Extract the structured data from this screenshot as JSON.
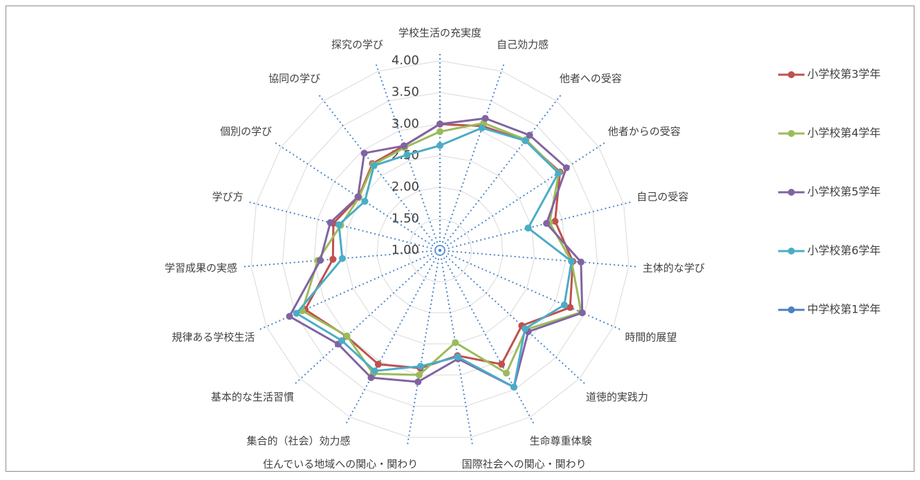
{
  "chart_data": {
    "type": "radar",
    "categories": [
      "学校生活の充実度",
      "自己効力感",
      "他者への受容",
      "他者からの受容",
      "自己の受容",
      "主体的な学び",
      "時間的展望",
      "道徳的実践力",
      "生命尊重体験",
      "国際社会への関心・関わり",
      "住んでいる地域への関心・関わり",
      "集合的（社会）効力感",
      "基本的な生活習慣",
      "規律ある学校生活",
      "学習成果の実感",
      "学び方",
      "個別の学び",
      "協同の学び",
      "探究の学び"
    ],
    "series": [
      {
        "name": "小学校第3学年",
        "color": "#c0504d",
        "values": [
          3.0,
          3.08,
          3.2,
          3.27,
          2.88,
          3.11,
          3.25,
          2.76,
          3.05,
          2.69,
          2.89,
          3.05,
          3.01,
          3.33,
          2.7,
          2.74,
          2.54,
          2.74,
          2.75
        ]
      },
      {
        "name": "小学校第4学年",
        "color": "#9bbb59",
        "values": [
          2.88,
          3.13,
          3.22,
          3.25,
          2.79,
          3.09,
          3.44,
          2.85,
          3.21,
          2.48,
          3.0,
          3.22,
          3.0,
          3.38,
          2.94,
          2.62,
          2.53,
          2.72,
          2.72
        ]
      },
      {
        "name": "小学校第5学年",
        "color": "#8064a2",
        "values": [
          3.0,
          3.21,
          3.31,
          3.39,
          2.74,
          3.24,
          3.46,
          2.9,
          3.46,
          2.74,
          3.11,
          3.29,
          3.19,
          3.6,
          2.9,
          2.79,
          2.55,
          2.95,
          2.75
        ]
      },
      {
        "name": "小学校第6学年",
        "color": "#4bacc6",
        "values": [
          2.66,
          3.05,
          3.2,
          3.24,
          2.44,
          3.09,
          3.15,
          2.83,
          3.46,
          2.71,
          2.86,
          3.17,
          3.11,
          3.48,
          2.55,
          2.65,
          2.42,
          2.7,
          2.6
        ]
      },
      {
        "name": "中学校第1学年",
        "color": "#4f81bd",
        "values": [
          null,
          null,
          null,
          null,
          null,
          null,
          null,
          null,
          null,
          null,
          null,
          null,
          null,
          null,
          null,
          null,
          null,
          null,
          null
        ]
      }
    ],
    "ylim": [
      1,
      4
    ],
    "yticks": [
      {
        "value": 1,
        "label": "1.00"
      },
      {
        "value": 1.5,
        "label": "1.50"
      },
      {
        "value": 2,
        "label": "2.00"
      },
      {
        "value": 2.5,
        "label": "2.50"
      },
      {
        "value": 3,
        "label": "3.00"
      },
      {
        "value": 3.5,
        "label": "3.50"
      },
      {
        "value": 4,
        "label": "4.00"
      }
    ],
    "grid": true,
    "legend": "right"
  }
}
